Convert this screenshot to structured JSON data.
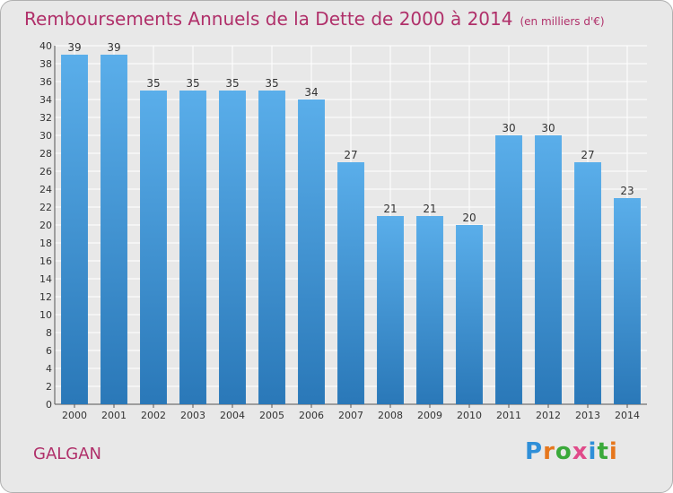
{
  "title": "Remboursements Annuels de la Dette de 2000 à 2014",
  "subtitle": "(en milliers d'€)",
  "town": "GALGAN",
  "logo": {
    "text": "Proxiti",
    "letter_colors": [
      "#2f8fd8",
      "#e6771d",
      "#3aa93a",
      "#e04b8a",
      "#2f8fd8",
      "#3aa93a",
      "#e6771d"
    ]
  },
  "colors": {
    "title": "#b0306a",
    "plot_bg": "#e8e8e8",
    "grid": "#ffffff",
    "bar_top": "#5aaeea",
    "bar_bottom": "#2a78b8"
  },
  "chart_data": {
    "type": "bar",
    "categories": [
      "2000",
      "2001",
      "2002",
      "2003",
      "2004",
      "2005",
      "2006",
      "2007",
      "2008",
      "2009",
      "2010",
      "2011",
      "2012",
      "2013",
      "2014"
    ],
    "values": [
      39,
      39,
      35,
      35,
      35,
      35,
      34,
      27,
      21,
      21,
      20,
      30,
      30,
      27,
      23
    ],
    "ylim": [
      0,
      40
    ],
    "yticks": [
      0,
      2,
      4,
      6,
      8,
      10,
      12,
      14,
      16,
      18,
      20,
      22,
      24,
      26,
      28,
      30,
      32,
      34,
      36,
      38,
      40
    ],
    "grid": true,
    "data_labels": true
  }
}
